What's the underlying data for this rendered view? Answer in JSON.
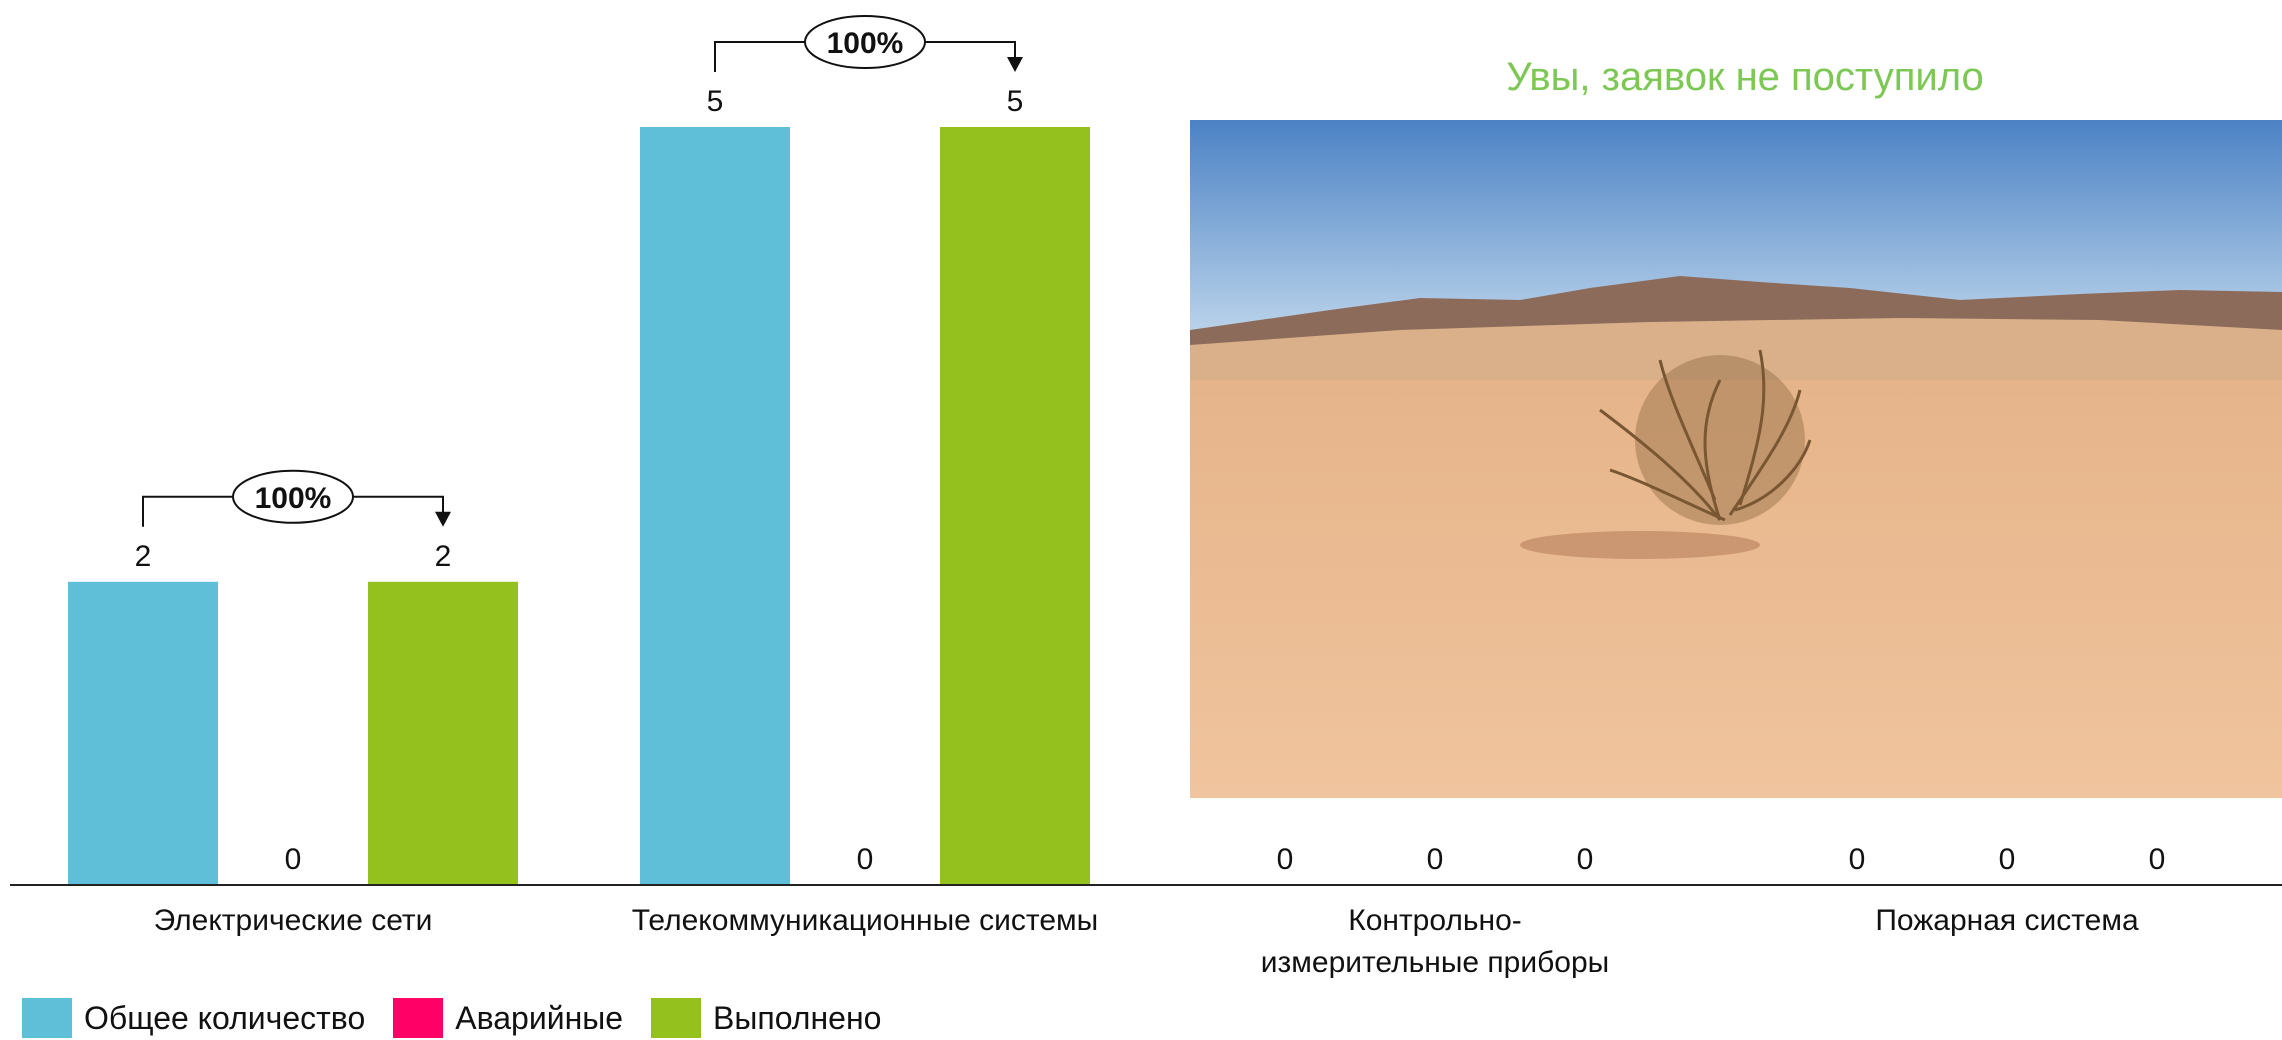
{
  "chart_data": {
    "type": "bar",
    "categories": [
      "Электрические сети",
      "Телекоммуникационные системы",
      "Контрольно-\nизмерительные приборы",
      "Пожарная система"
    ],
    "series": [
      {
        "name": "Общее количество",
        "color": "#5fbfd8",
        "values": [
          2,
          5,
          0,
          0
        ]
      },
      {
        "name": "Аварийные",
        "color": "#ff0066",
        "values": [
          0,
          0,
          0,
          0
        ]
      },
      {
        "name": "Выполнено",
        "color": "#95c11f",
        "values": [
          2,
          5,
          0,
          0
        ]
      }
    ],
    "completion_labels": [
      "100%",
      "100%",
      "",
      ""
    ],
    "note": "Увы, заявок не поступило",
    "note_color": "#7dc855",
    "photo_description_icon": "desert-tumbleweed-photo",
    "ylim": [
      0,
      5
    ]
  }
}
